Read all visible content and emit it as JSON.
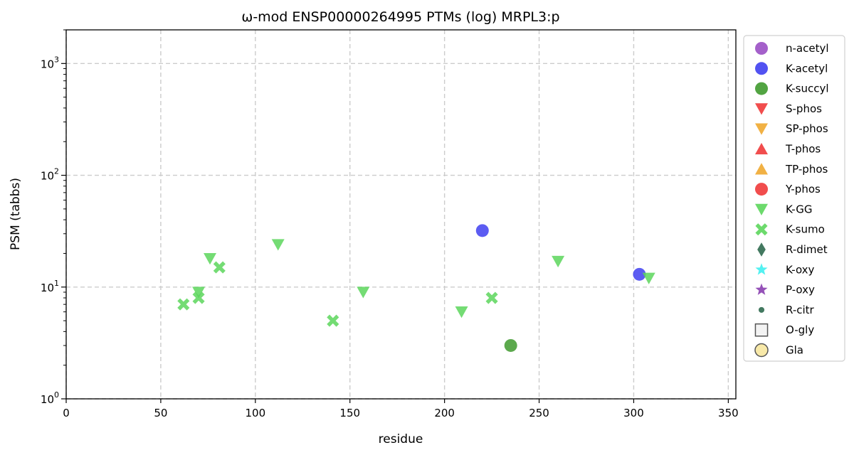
{
  "chart_data": {
    "type": "scatter",
    "title": "ω-mod ENSP00000264995 PTMs (log) MRPL3:p",
    "xlabel": "residue",
    "ylabel": "PSM (tabbs)",
    "xlim": [
      0,
      354
    ],
    "ylim": [
      1,
      2000
    ],
    "yscale": "log",
    "grid": true,
    "legend_placement": "outside right",
    "x_ticks": [
      0,
      50,
      100,
      150,
      200,
      250,
      300,
      350
    ],
    "y_ticks": [
      {
        "value": 1,
        "base": "10",
        "exp": "0"
      },
      {
        "value": 10,
        "base": "10",
        "exp": "1"
      },
      {
        "value": 100,
        "base": "10",
        "exp": "2"
      },
      {
        "value": 1000,
        "base": "10",
        "exp": "3"
      }
    ],
    "series": [
      {
        "name": "n-acetyl",
        "marker": "circle",
        "color": "#9a4fc4",
        "points": []
      },
      {
        "name": "K-acetyl",
        "marker": "circle",
        "color": "#3f3ff0",
        "points": [
          {
            "x": 220,
            "y": 32
          },
          {
            "x": 303,
            "y": 13
          }
        ]
      },
      {
        "name": "K-succyl",
        "marker": "circle",
        "color": "#3f9a2e",
        "points": [
          {
            "x": 235,
            "y": 3
          }
        ]
      },
      {
        "name": "S-phos",
        "marker": "triangle-down",
        "color": "#f03a3a",
        "points": []
      },
      {
        "name": "SP-phos",
        "marker": "triangle-down",
        "color": "#f0a830",
        "points": []
      },
      {
        "name": "T-phos",
        "marker": "triangle-up",
        "color": "#f03a3a",
        "points": []
      },
      {
        "name": "TP-phos",
        "marker": "triangle-up",
        "color": "#f0a830",
        "points": []
      },
      {
        "name": "Y-phos",
        "marker": "circle",
        "color": "#f03a3a",
        "points": []
      },
      {
        "name": "K-GG",
        "marker": "triangle-down",
        "color": "#5cd65c",
        "points": [
          {
            "x": 70,
            "y": 9
          },
          {
            "x": 76,
            "y": 18
          },
          {
            "x": 112,
            "y": 24
          },
          {
            "x": 157,
            "y": 9
          },
          {
            "x": 209,
            "y": 6
          },
          {
            "x": 260,
            "y": 17
          },
          {
            "x": 308,
            "y": 12
          }
        ]
      },
      {
        "name": "K-sumo",
        "marker": "x",
        "color": "#5cd65c",
        "points": [
          {
            "x": 62,
            "y": 7
          },
          {
            "x": 70,
            "y": 8
          },
          {
            "x": 81,
            "y": 15
          },
          {
            "x": 141,
            "y": 5
          },
          {
            "x": 225,
            "y": 8
          }
        ]
      },
      {
        "name": "R-dimet",
        "marker": "diamond",
        "color": "#2f6a4f",
        "points": []
      },
      {
        "name": "K-oxy",
        "marker": "star",
        "color": "#40f0f0",
        "points": []
      },
      {
        "name": "P-oxy",
        "marker": "star",
        "color": "#8a3fb0",
        "points": []
      },
      {
        "name": "R-citr",
        "marker": "small-circle",
        "color": "#2f6a4f",
        "points": []
      },
      {
        "name": "O-gly",
        "marker": "square-open",
        "color": "#f2f2f2",
        "points": []
      },
      {
        "name": "Gla",
        "marker": "circle-open",
        "color": "#f7e7a0",
        "points": []
      }
    ]
  }
}
